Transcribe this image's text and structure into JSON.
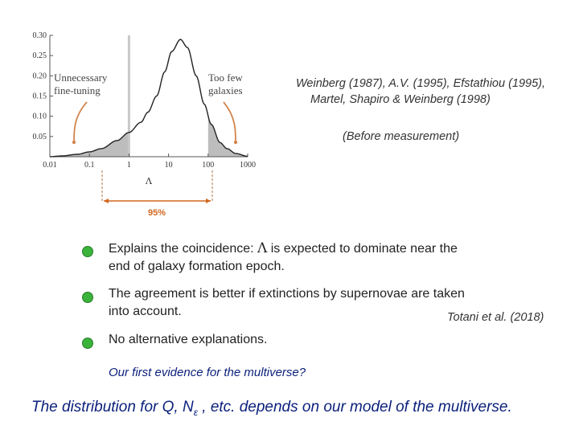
{
  "chart_data": {
    "type": "area",
    "xscale": "log",
    "xlim": [
      0.01,
      1000
    ],
    "ylim": [
      0,
      0.3
    ],
    "x_ticks": [
      "0.01",
      "0.1",
      "1",
      "10",
      "100",
      "1000"
    ],
    "y_ticks": [
      "0.05",
      "0.10",
      "0.15",
      "0.20",
      "0.25",
      "0.30"
    ],
    "xlabel": "Λ",
    "x": [
      0.01,
      0.02,
      0.05,
      0.1,
      0.2,
      0.5,
      1,
      2,
      3,
      5,
      8,
      12,
      20,
      30,
      50,
      80,
      120,
      200,
      300,
      500,
      1000
    ],
    "y": [
      0.0,
      0.002,
      0.006,
      0.012,
      0.02,
      0.04,
      0.06,
      0.085,
      0.11,
      0.15,
      0.21,
      0.26,
      0.29,
      0.27,
      0.2,
      0.13,
      0.08,
      0.035,
      0.02,
      0.008,
      0.001
    ],
    "shaded_tails": [
      [
        0.01,
        1
      ],
      [
        100,
        1000
      ]
    ],
    "vertical_line_x": 1,
    "interval_label": "95%"
  },
  "annotations": {
    "left": [
      "Unnecessary",
      "fine-tuning"
    ],
    "right": [
      "Too few",
      "galaxies"
    ]
  },
  "citations": {
    "line1": "Weinberg (1987), A.V. (1995), Efstathiou (1995),",
    "line2": "Martel, Shapiro & Weinberg (1998)",
    "before": "(Before measurement)"
  },
  "bullets": [
    {
      "pre": "Explains the coincidence: ",
      "symbol": "Λ",
      "post": " is expected to dominate near the",
      "line2": "end of galaxy formation epoch."
    },
    {
      "line1": "The agreement is better if extinctions by supernovae are taken",
      "line2": "into account."
    },
    {
      "line1": "No alternative explanations."
    }
  ],
  "totani_citation": "Totani et al. (2018)",
  "evidence_text": "Our first evidence for the multiverse?",
  "bottom_line": {
    "pre": "The distribution for Q, N",
    "sub": "ε",
    "post": " , etc. depends on our model of the multiverse."
  },
  "colors": {
    "curve": "#222222",
    "shade": "#bdbdbd",
    "vertical_line": "#c8c8c8",
    "arrow": "#d2864e",
    "interval": "#d2661e",
    "bullet": "#3ab33a",
    "bottom_text": "#0a1f7a"
  }
}
